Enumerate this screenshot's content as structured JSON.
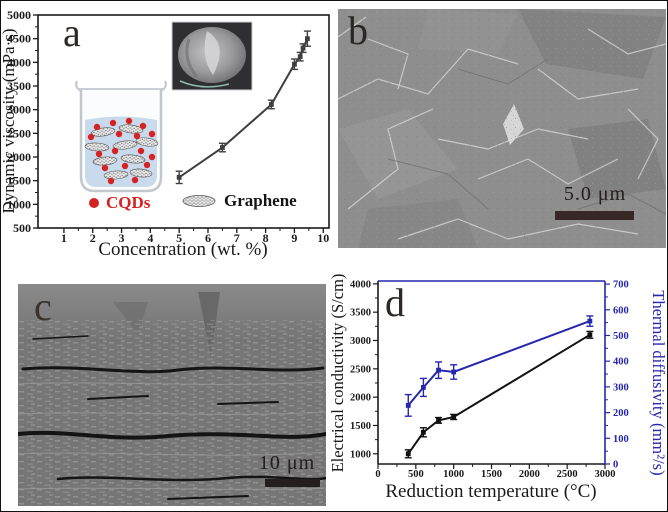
{
  "figure": {
    "panels": {
      "a": {
        "label": "a",
        "legend": {
          "cqds": "CQDs",
          "graphene": "Graphene"
        }
      },
      "b": {
        "label": "b",
        "scalebar": "5.0 μm"
      },
      "c": {
        "label": "c",
        "scalebar": "10 μm"
      },
      "d": {
        "label": "d"
      }
    },
    "colors": {
      "axis_black": "#1a1a1a",
      "curve_gray": "#3f3f3f",
      "accent_blue": "#2626ae",
      "cqds_red": "#d62222"
    }
  },
  "chart_data": [
    {
      "panel": "a",
      "type": "line",
      "title": "",
      "xlabel": "Concentration (wt. %)",
      "ylabel": "Dynamic viscosity (mPa·s)",
      "xlim": [
        0.1,
        10.2
      ],
      "ylim": [
        500,
        5000
      ],
      "xticks": [
        1,
        2,
        3,
        4,
        5,
        6,
        7,
        8,
        9,
        10
      ],
      "yticks": [
        500,
        1000,
        1500,
        2000,
        2500,
        3000,
        3500,
        4000,
        4500,
        5000
      ],
      "grid": false,
      "series": [
        {
          "name": "dynamic-viscosity",
          "color": "#3f3f3f",
          "x": [
            5.0,
            6.5,
            8.2,
            9.0,
            9.2,
            9.3,
            9.45
          ],
          "y": [
            1570,
            2200,
            3110,
            3960,
            4120,
            4300,
            4500
          ],
          "yerr": [
            130,
            90,
            90,
            110,
            90,
            90,
            160
          ]
        }
      ]
    },
    {
      "panel": "d",
      "type": "line",
      "title": "",
      "xlabel": "Reduction temperature (°C)",
      "ylabel_left": "Electrical conductivity (S/cm)",
      "ylabel_right": "Thermal diffusivity (mm²/s)",
      "xlim": [
        0,
        3000
      ],
      "ylim_left": [
        820,
        4050
      ],
      "ylim_right": [
        0,
        712
      ],
      "xticks": [
        0,
        500,
        1000,
        1500,
        2000,
        2500,
        3000
      ],
      "yticks_left": [
        1000,
        1500,
        2000,
        2500,
        3000,
        3500,
        4000
      ],
      "yticks_right": [
        0,
        100,
        200,
        300,
        400,
        500,
        600,
        700
      ],
      "grid": false,
      "series": [
        {
          "name": "electrical-conductivity",
          "axis": "left",
          "color": "#111111",
          "x": [
            400,
            600,
            800,
            1000,
            2800
          ],
          "y": [
            1000,
            1380,
            1590,
            1650,
            3100
          ],
          "yerr": [
            70,
            80,
            50,
            45,
            60
          ]
        },
        {
          "name": "thermal-diffusivity",
          "axis": "right",
          "color": "#2626ae",
          "x": [
            400,
            600,
            800,
            1000,
            2800
          ],
          "y": [
            228,
            298,
            365,
            358,
            556
          ],
          "yerr": [
            42,
            35,
            32,
            28,
            20
          ]
        }
      ]
    }
  ]
}
